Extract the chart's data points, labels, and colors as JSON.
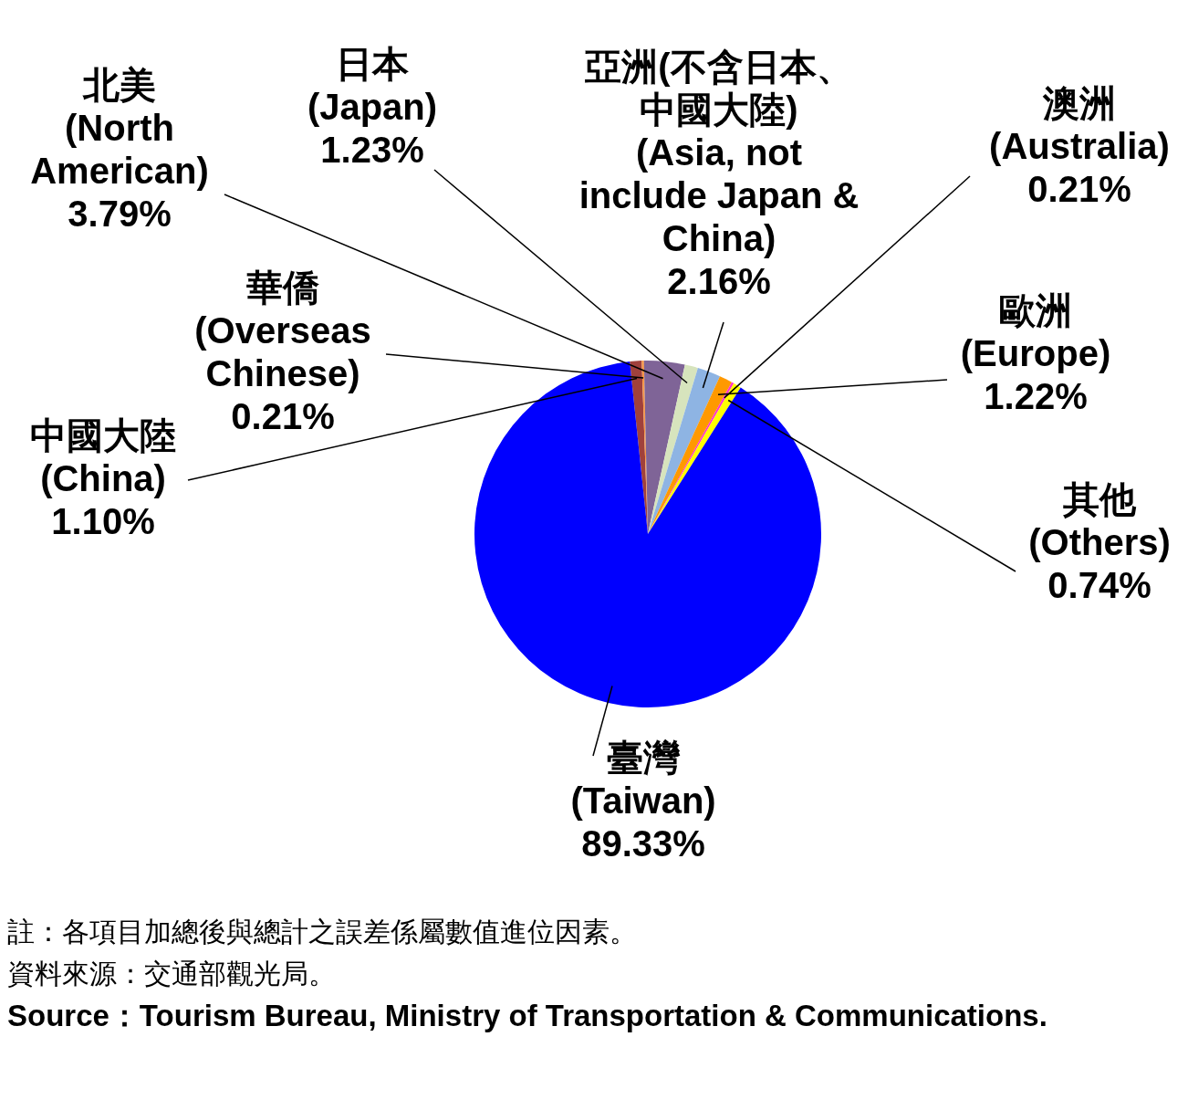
{
  "chart_data": {
    "type": "pie",
    "categories": [
      "中國大陸\n(China)",
      "華僑\n(Overseas\nChinese)",
      "北美\n(North\nAmerican)",
      "日本\n(Japan)",
      "亞洲(不含日本、中國大陸)\n(Asia, not\ninclude Japan &\nChina)",
      "歐洲\n(Europe)",
      "澳洲\n(Australia)",
      "其他\n(Others)",
      "臺灣\n(Taiwan)"
    ],
    "values": [
      1.1,
      0.21,
      3.79,
      1.23,
      2.16,
      1.22,
      0.21,
      0.74,
      89.33
    ],
    "value_labels": [
      "1.10%",
      "0.21%",
      "3.79%",
      "1.23%",
      "2.16%",
      "1.22%",
      "0.21%",
      "0.74%",
      "89.33%"
    ],
    "colors": [
      "#a0413c",
      "#f79646",
      "#7f6497",
      "#d7e4bd",
      "#8eb4e3",
      "#ff9900",
      "#ff33cc",
      "#ffff00",
      "#0000ff"
    ],
    "legend": false,
    "annotations": [
      "註：各項目加總後與總計之誤差係屬數值進位因素。",
      "資料來源：交通部觀光局。",
      "Source：Tourism Bureau, Ministry of Transportation & Communications."
    ]
  }
}
